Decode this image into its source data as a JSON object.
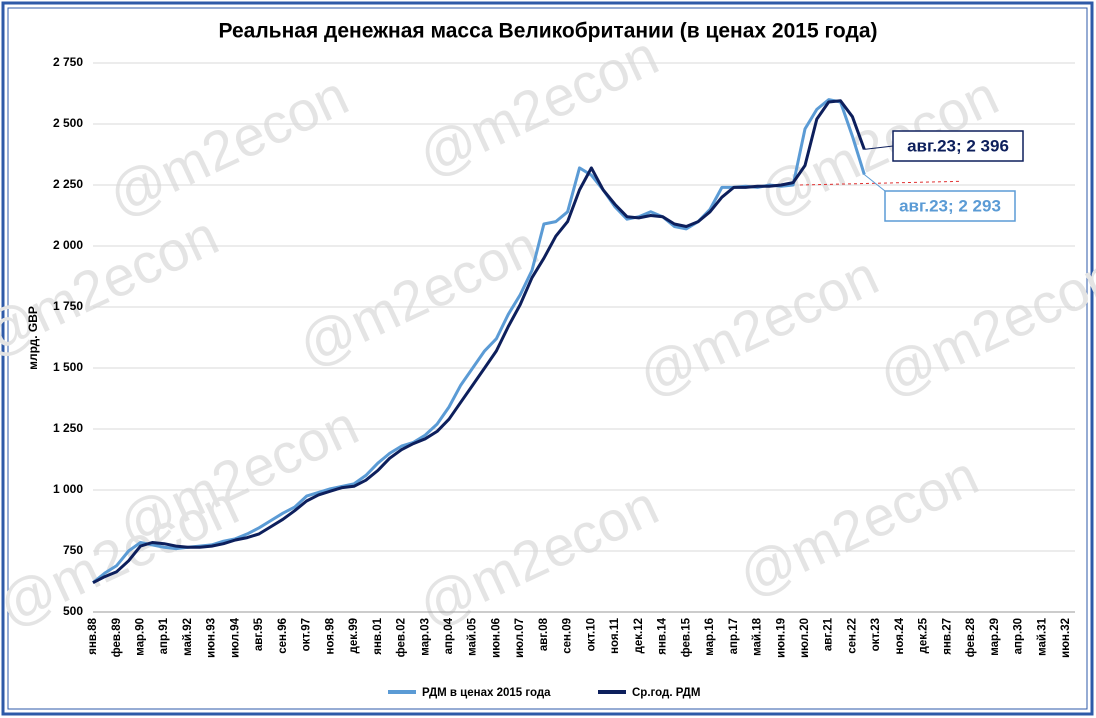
{
  "chart_data": {
    "type": "line",
    "title": "Реальная денежная масса Великобритании (в ценах 2015 года)",
    "y_label": "млрд. GBP",
    "watermark": "@m2econ",
    "categories": [
      "янв.88",
      null,
      "фев.89",
      null,
      "мар.90",
      null,
      "апр.91",
      null,
      "май.92",
      null,
      "июн.93",
      null,
      "июл.94",
      null,
      "авг.95",
      null,
      "сен.96",
      null,
      "окт.97",
      null,
      "ноя.98",
      null,
      "дек.99",
      null,
      "янв.01",
      null,
      "фев.02",
      null,
      "мар.03",
      null,
      "апр.04",
      null,
      "май.05",
      null,
      "июн.06",
      null,
      "июл.07",
      null,
      "авг.08",
      null,
      "сен.09",
      null,
      "окт.10",
      null,
      "ноя.11",
      null,
      "дек.12",
      null,
      "янв.14",
      null,
      "фев.15",
      null,
      "мар.16",
      null,
      "апр.17",
      null,
      "май.18",
      null,
      "июн.19",
      null,
      "июл.20",
      null,
      "авг.21",
      null,
      "сен.22",
      null,
      "окт.23",
      null,
      "ноя.24",
      null,
      "дек.25",
      null,
      "янв.27",
      null,
      "фев.28",
      null,
      "мар.29",
      null,
      "апр.30",
      null,
      "май.31",
      null,
      "июн.32"
    ],
    "series": [
      {
        "name": "РДМ в ценах 2015 года",
        "color": "#5b9bd5",
        "width": 3,
        "values": [
          620,
          660,
          690,
          750,
          785,
          775,
          765,
          760,
          765,
          770,
          775,
          790,
          800,
          820,
          845,
          875,
          905,
          930,
          975,
          990,
          1005,
          1015,
          1025,
          1060,
          1110,
          1150,
          1180,
          1195,
          1225,
          1270,
          1340,
          1430,
          1500,
          1570,
          1620,
          1720,
          1800,
          1900,
          2090,
          2100,
          2140,
          2320,
          2290,
          2230,
          2160,
          2110,
          2120,
          2140,
          2120,
          2080,
          2070,
          2100,
          2150,
          2240,
          2240,
          2245,
          2240,
          2250,
          2245,
          2250,
          2480,
          2560,
          2600,
          2590,
          2450,
          2293,
          null,
          null,
          null,
          null,
          null,
          null,
          null,
          null,
          null,
          null,
          null,
          null,
          null,
          null,
          null,
          null,
          null
        ]
      },
      {
        "name": "Ср.год. РДМ",
        "color": "#0d1f5c",
        "width": 3,
        "values": [
          620,
          645,
          665,
          710,
          770,
          785,
          780,
          770,
          765,
          765,
          770,
          780,
          795,
          805,
          820,
          850,
          880,
          915,
          955,
          980,
          995,
          1010,
          1015,
          1040,
          1080,
          1130,
          1165,
          1190,
          1210,
          1240,
          1290,
          1360,
          1430,
          1500,
          1570,
          1670,
          1760,
          1870,
          1950,
          2040,
          2100,
          2230,
          2320,
          2230,
          2170,
          2120,
          2115,
          2125,
          2120,
          2090,
          2080,
          2100,
          2140,
          2200,
          2240,
          2240,
          2245,
          2245,
          2250,
          2260,
          2330,
          2520,
          2590,
          2595,
          2530,
          2396,
          null,
          null,
          null,
          null,
          null,
          null,
          null,
          null,
          null,
          null,
          null,
          null,
          null,
          null,
          null,
          null,
          null
        ]
      }
    ],
    "annotations": [
      {
        "text": "авг.23;  2 396",
        "series": 1,
        "index": 65
      },
      {
        "text": "авг.23;  2 293",
        "series": 0,
        "index": 65
      }
    ],
    "ylim": [
      500,
      2750
    ],
    "yticks": [
      500,
      750,
      {
        "value": 1000,
        "label": "1 000"
      },
      {
        "value": 1250,
        "label": "1 250"
      },
      {
        "value": 1500,
        "label": "1 500"
      },
      {
        "value": 1750,
        "label": "1 750"
      },
      {
        "value": 2000,
        "label": "2 000"
      },
      {
        "value": 2250,
        "label": "2 250"
      },
      {
        "value": 2500,
        "label": "2 500"
      },
      {
        "value": 2750,
        "label": "2 750"
      }
    ],
    "grid": true
  }
}
